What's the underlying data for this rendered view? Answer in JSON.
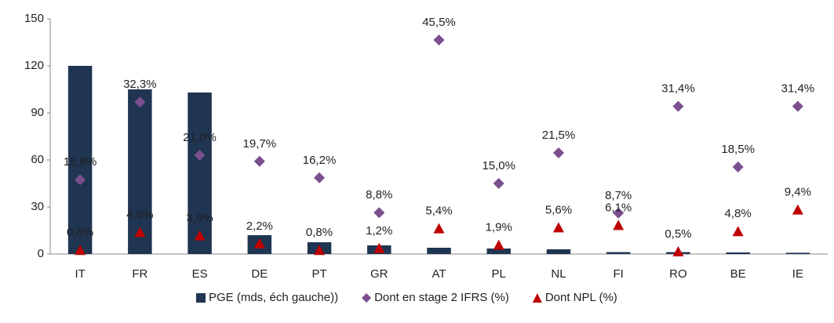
{
  "chart_data": {
    "type": "bar",
    "categories": [
      "IT",
      "FR",
      "ES",
      "DE",
      "PT",
      "GR",
      "AT",
      "PL",
      "NL",
      "FI",
      "RO",
      "BE",
      "IE"
    ],
    "ylim": [
      0,
      150
    ],
    "yticks": [
      0,
      30,
      60,
      90,
      120,
      150
    ],
    "y2lim": [
      0,
      50
    ],
    "legend": "bottom",
    "series": [
      {
        "name": "PGE (mds, éch gauche))",
        "type": "bar",
        "color": "#1f3552",
        "values": [
          120,
          105,
          103,
          12,
          7.5,
          5.5,
          4,
          3.5,
          3,
          1.2,
          1.2,
          1,
          0.8
        ]
      },
      {
        "name": "Dont en stage 2 IFRS (%)",
        "type": "scatter",
        "marker": "diamond",
        "axis": "y2",
        "color": "#7b4f8e",
        "values": [
          15.8,
          32.3,
          21.0,
          19.7,
          16.2,
          8.8,
          45.5,
          15.0,
          21.5,
          8.7,
          31.4,
          18.5,
          31.4
        ],
        "value_labels": [
          "15,8%",
          "32,3%",
          "21,0%",
          "19,7%",
          "16,2%",
          "8,8%",
          "45,5%",
          "15,0%",
          "21,5%",
          "8,7%",
          "31,4%",
          "18,5%",
          "31,4%"
        ]
      },
      {
        "name": "Dont NPL (%)",
        "type": "scatter",
        "marker": "triangle",
        "axis": "y2",
        "color": "#c00000",
        "values": [
          0.8,
          4.6,
          3.9,
          2.2,
          0.8,
          1.2,
          5.4,
          1.9,
          5.6,
          6.1,
          0.5,
          4.8,
          9.4
        ],
        "value_labels": [
          "0,8%",
          "4,6%",
          "3,9%",
          "2,2%",
          "0,8%",
          "1,2%",
          "5,4%",
          "1,9%",
          "5,6%",
          "6,1%",
          "0,5%",
          "4,8%",
          "9,4%"
        ]
      }
    ]
  }
}
